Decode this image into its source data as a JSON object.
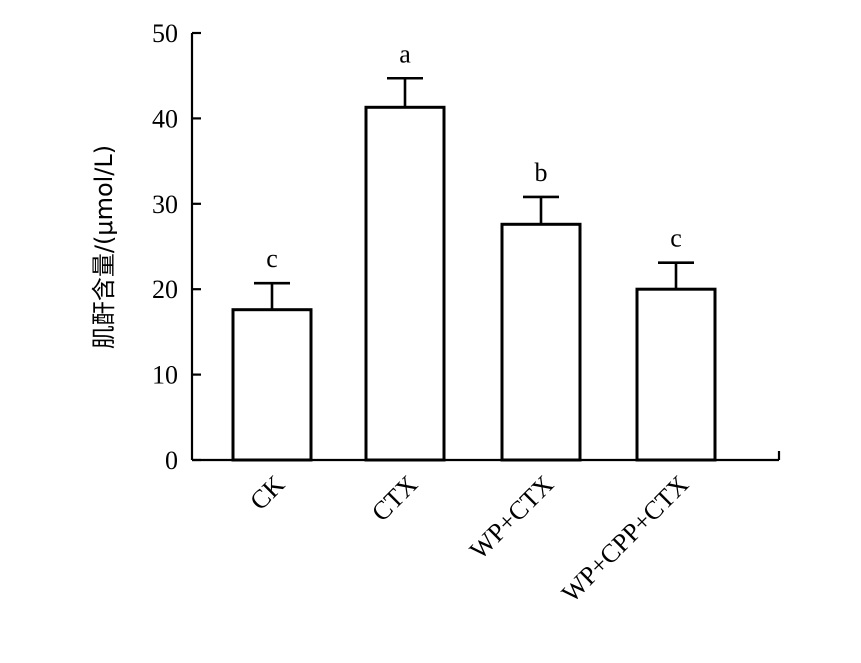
{
  "chart_data": {
    "type": "bar",
    "categories": [
      "CK",
      "CTX",
      "WP+CTX",
      "WP+CPP+CTX"
    ],
    "values": [
      17.6,
      41.3,
      27.6,
      20.0
    ],
    "error": [
      3.1,
      3.4,
      3.2,
      3.1
    ],
    "significance": [
      "c",
      "a",
      "b",
      "c"
    ],
    "ylabel": "肌酐含量/(μmol/L)",
    "xlabel": "",
    "ylim": [
      0,
      50
    ],
    "yticks": [
      0,
      10,
      20,
      30,
      40,
      50
    ],
    "grid": false,
    "bar_fill": "#ffffff",
    "bar_stroke": "#000000"
  }
}
